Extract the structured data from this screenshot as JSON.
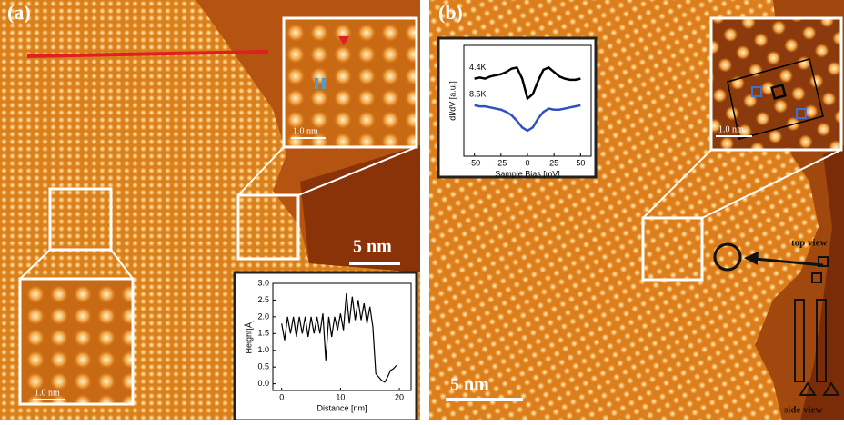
{
  "panel_a": {
    "label": "(a)",
    "inset_scale_top": "1.0 nm",
    "inset_scale_bottom": "1.0 nm",
    "scale_bar": "5 nm"
  },
  "panel_b": {
    "label": "(b)",
    "inset_scale": "1.0 nm",
    "scale_bar": "5 nm",
    "top_view": "top view",
    "side_view": "side view"
  },
  "chart_data": [
    {
      "type": "line",
      "xlabel": "Distance [nm]",
      "ylabel": "Height[Å]",
      "color": "#000000",
      "x": [
        0,
        0.5,
        1,
        1.5,
        2,
        2.5,
        3,
        3.5,
        4,
        4.5,
        5,
        5.5,
        6,
        6.5,
        7,
        7.5,
        8,
        8.5,
        9,
        9.5,
        10,
        10.5,
        11,
        11.5,
        12,
        12.5,
        13,
        13.5,
        14,
        14.5,
        15,
        15.5,
        16,
        16.5,
        17,
        17.5,
        18,
        18.5,
        19,
        19.5
      ],
      "values": [
        1.8,
        1.3,
        2.0,
        1.5,
        2.0,
        1.4,
        2.0,
        1.5,
        2.0,
        1.4,
        2.0,
        1.5,
        2.0,
        1.5,
        2.1,
        0.7,
        2.0,
        1.4,
        2.0,
        1.6,
        2.1,
        1.6,
        2.7,
        1.8,
        2.6,
        1.9,
        2.5,
        1.9,
        2.4,
        1.8,
        2.3,
        1.7,
        0.3,
        0.2,
        0.1,
        0.05,
        0.2,
        0.4,
        0.45,
        0.55
      ],
      "xlim": [
        -1.5,
        22
      ],
      "xticks": [
        0,
        10,
        20
      ],
      "ylim": [
        -0.2,
        3.0
      ],
      "yticks": [
        {
          "value": 0,
          "label": "0.0"
        },
        {
          "value": 0.5,
          "label": "0.5"
        },
        {
          "value": 1,
          "label": "1.0"
        },
        {
          "value": 1.5,
          "label": "1.5"
        },
        {
          "value": 2,
          "label": "2.0"
        },
        {
          "value": 2.5,
          "label": "2.5"
        },
        {
          "value": 3,
          "label": "3.0"
        }
      ]
    },
    {
      "type": "line",
      "xlabel": "Sample Bias [mV]",
      "ylabel": "dI/dV [a.u.]",
      "x": [
        -50,
        -45,
        -40,
        -35,
        -30,
        -25,
        -20,
        -15,
        -10,
        -5,
        0,
        5,
        10,
        15,
        20,
        25,
        30,
        35,
        40,
        45,
        50
      ],
      "series": [
        {
          "name": "4.4K",
          "color": "#000000",
          "values": [
            7.0,
            7.1,
            7.0,
            7.2,
            7.3,
            7.4,
            7.6,
            7.9,
            8.0,
            7.0,
            5.2,
            5.6,
            6.8,
            7.8,
            8.0,
            7.6,
            7.2,
            7.0,
            6.9,
            6.9,
            7.0
          ]
        },
        {
          "name": "8.5K",
          "color": "#3050c0",
          "values": [
            4.6,
            4.5,
            4.5,
            4.4,
            4.3,
            4.2,
            4.0,
            3.7,
            3.2,
            2.6,
            2.3,
            2.6,
            3.4,
            4.0,
            4.3,
            4.2,
            4.2,
            4.3,
            4.4,
            4.5,
            4.6
          ]
        }
      ],
      "xlim": [
        -60,
        60
      ],
      "xticks": [
        -50,
        -25,
        0,
        25,
        50
      ],
      "ylim": [
        0,
        10
      ]
    }
  ]
}
